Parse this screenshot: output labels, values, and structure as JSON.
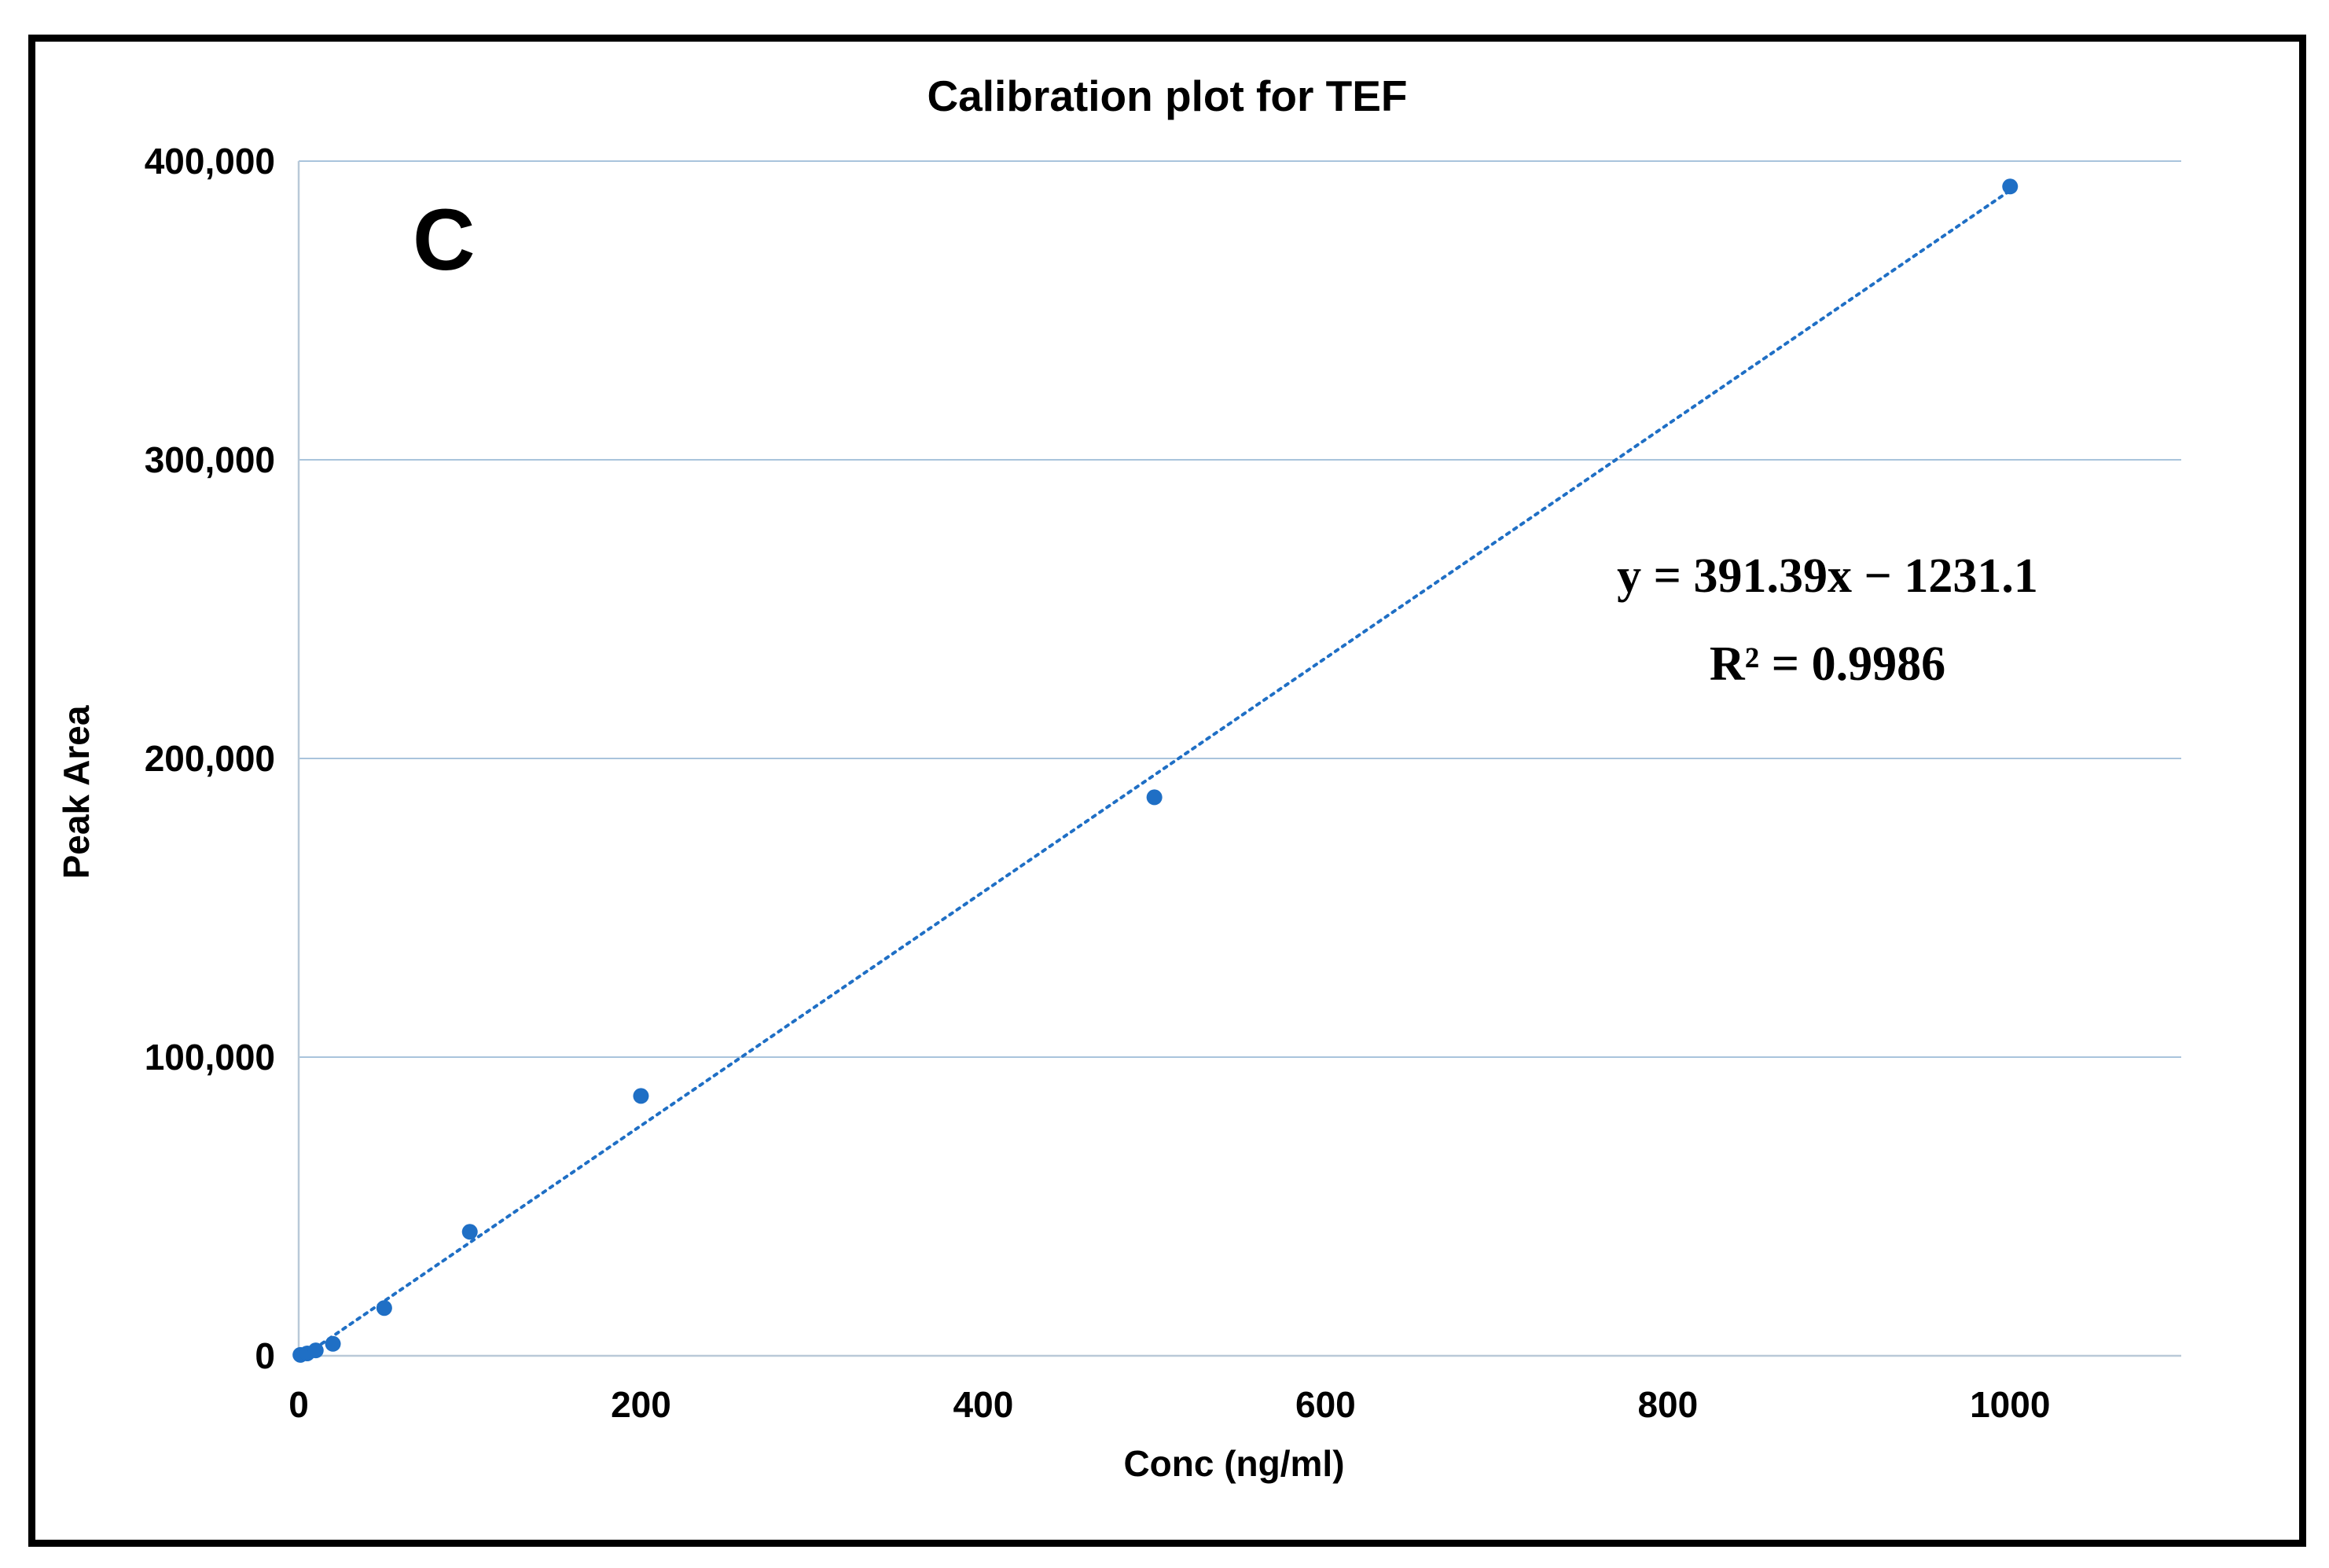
{
  "chart_data": {
    "type": "scatter",
    "title": "Calibration plot for TEF",
    "panel_label": "C",
    "xlabel": "Conc (ng/ml)",
    "ylabel": "Peak Area",
    "xlim": [
      0,
      1100
    ],
    "ylim": [
      0,
      400000
    ],
    "x_ticks": [
      0,
      200,
      400,
      600,
      800,
      1000
    ],
    "x_tick_labels": [
      "0",
      "200",
      "400",
      "600",
      "800",
      "1000"
    ],
    "y_ticks": [
      0,
      100000,
      200000,
      300000,
      400000
    ],
    "y_tick_labels": [
      "0",
      "100,000",
      "200,000",
      "300,000",
      "400,000"
    ],
    "grid": "horizontal",
    "series": [
      {
        "name": "TEF",
        "color": "#1f6fc5",
        "x": [
          1,
          5,
          10,
          20,
          50,
          100,
          200,
          500,
          1000
        ],
        "y": [
          300,
          800,
          1800,
          4000,
          16000,
          41500,
          87000,
          187000,
          391500
        ]
      }
    ],
    "trendline": {
      "type": "linear",
      "slope": 391.39,
      "intercept": -1231.1,
      "x_range": [
        5,
        1000
      ],
      "color": "#1f6fc5",
      "style": "dotted"
    },
    "annotations": {
      "equation": "y = 391.39x − 1231.1",
      "r_squared": "R² = 0.9986"
    }
  }
}
